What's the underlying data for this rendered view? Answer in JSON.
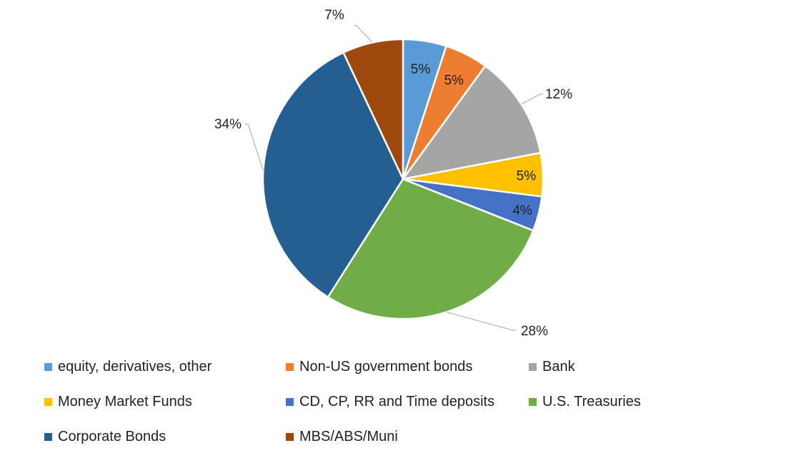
{
  "chart_data": {
    "type": "pie",
    "slices": [
      {
        "label": "equity, derivatives, other",
        "value": 5,
        "value_label": "5%",
        "color": "#5B9BD5"
      },
      {
        "label": "Non-US government bonds",
        "value": 5,
        "value_label": "5%",
        "color": "#ED7D31"
      },
      {
        "label": "Bank",
        "value": 12,
        "value_label": "12%",
        "color": "#A5A5A5"
      },
      {
        "label": "Money Market Funds",
        "value": 5,
        "value_label": "5%",
        "color": "#FFC000"
      },
      {
        "label": "CD, CP, RR and Time deposits",
        "value": 4,
        "value_label": "4%",
        "color": "#4472C4"
      },
      {
        "label": "U.S. Treasuries",
        "value": 28,
        "value_label": "28%",
        "color": "#70AD47"
      },
      {
        "label": "Corporate Bonds",
        "value": 34,
        "value_label": "34%",
        "color": "#255E91"
      },
      {
        "label": "MBS/ABS/Muni",
        "value": 7,
        "value_label": "7%",
        "color": "#9E480E"
      }
    ],
    "legend_position": "bottom"
  }
}
